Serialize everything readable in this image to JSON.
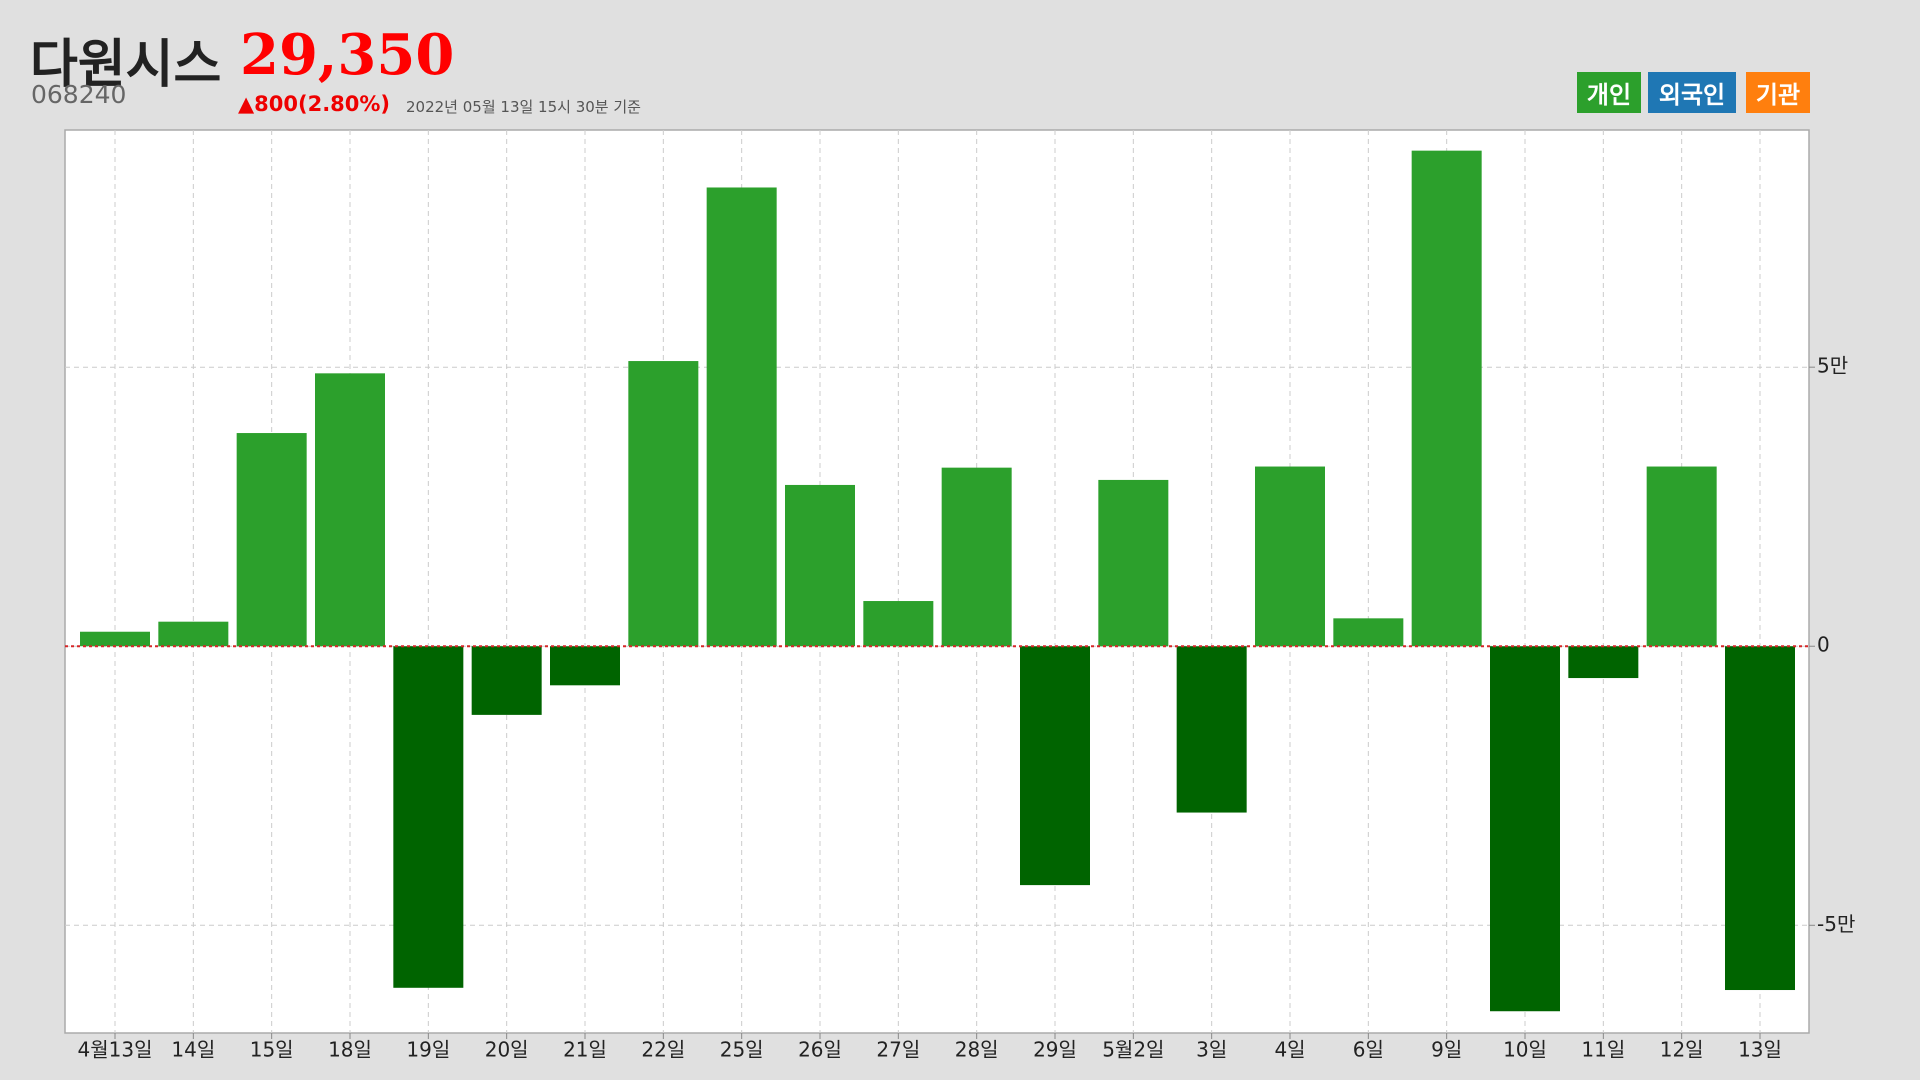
{
  "header": {
    "title": "다원시스",
    "price": "29,350",
    "code": "068240",
    "change": "▲800(2.80%)",
    "timestamp": "2022년 05월 13일 15시 30분 기준"
  },
  "legend_buttons": [
    {
      "label": "개인",
      "color": "#2ca02c"
    },
    {
      "label": "외국인",
      "color": "#1f77b4"
    },
    {
      "label": "기관",
      "color": "#ff7f0e"
    }
  ],
  "chart_data": {
    "type": "bar",
    "categories": [
      "4월13일",
      "14일",
      "15일",
      "18일",
      "19일",
      "20일",
      "21일",
      "22일",
      "25일",
      "26일",
      "27일",
      "28일",
      "29일",
      "5월2일",
      "3일",
      "4일",
      "6일",
      "9일",
      "10일",
      "11일",
      "12일",
      "13일"
    ],
    "values": [
      2600,
      4400,
      38200,
      48900,
      -61200,
      -12300,
      -7000,
      51100,
      82200,
      28900,
      8100,
      32000,
      -42800,
      29800,
      -29800,
      32200,
      5000,
      88800,
      -65400,
      -5700,
      32200,
      -61600
    ],
    "positive_color": "#2ca02c",
    "negative_color": "#006400",
    "zero_line_color": "#d62728",
    "ylim": [
      -69300,
      92500
    ],
    "yticks": [
      {
        "value": -50000,
        "label": "-5만"
      },
      0,
      {
        "value": 50000,
        "label": "5만"
      }
    ],
    "grid": true
  }
}
